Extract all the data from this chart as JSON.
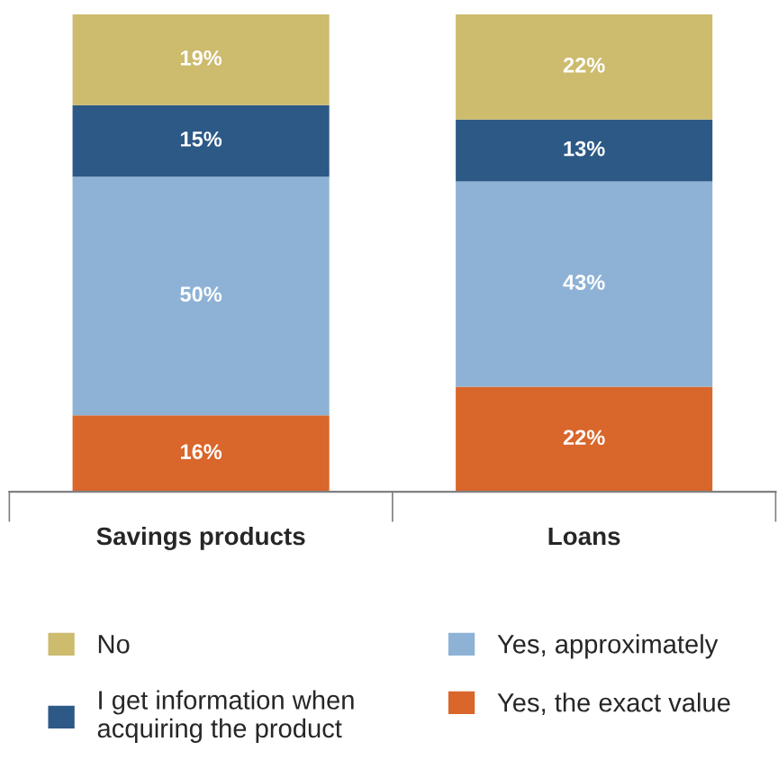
{
  "chart_data": {
    "type": "bar",
    "stacked": true,
    "categories": [
      "Savings products",
      "Loans"
    ],
    "series": [
      {
        "name": "Yes, the exact value",
        "color": "#d9662b",
        "values": [
          16,
          22
        ],
        "value_labels": [
          "16%",
          "22%"
        ]
      },
      {
        "name": "Yes, approximately",
        "color": "#8db2d5",
        "values": [
          50,
          43
        ],
        "value_labels": [
          "50%",
          "43%"
        ]
      },
      {
        "name": "I get information when\nacquiring the product",
        "color": "#2d5986",
        "values": [
          15,
          13
        ],
        "value_labels": [
          "15%",
          "13%"
        ]
      },
      {
        "name": "No",
        "color": "#cdbb6e",
        "values": [
          19,
          22
        ],
        "value_labels": [
          "19%",
          "22%"
        ]
      }
    ],
    "legend": "bottom",
    "grid": false,
    "tick_labels": "x"
  }
}
